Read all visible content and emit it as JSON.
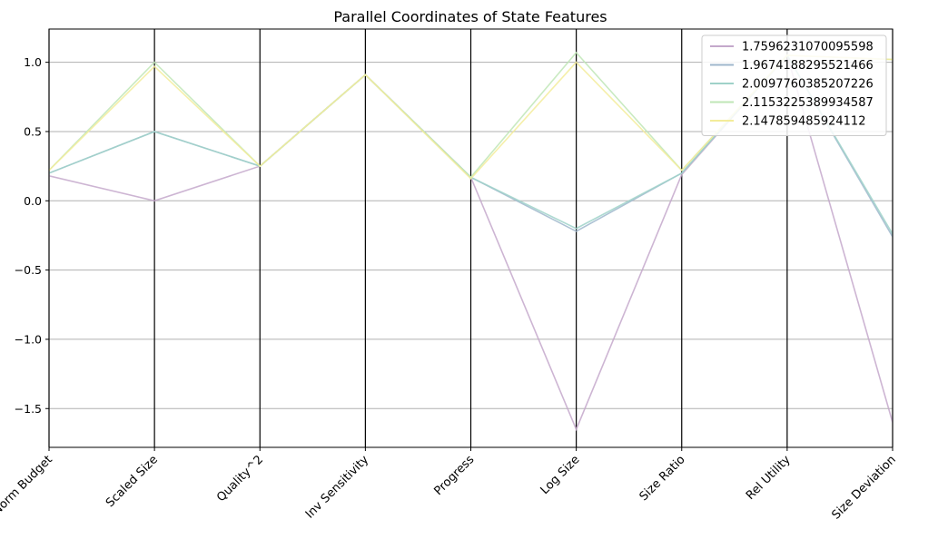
{
  "chart_data": {
    "type": "line",
    "chart_kind": "parallel-coordinates",
    "title": "Parallel Coordinates of State Features",
    "categories": [
      "Norm Budget",
      "Scaled Size",
      "Quality^2",
      "Inv Sensitivity",
      "Progress",
      "Log Size",
      "Size Ratio",
      "Rel Utility",
      "Size Deviation"
    ],
    "ylim": [
      -1.78,
      1.24
    ],
    "yticks": [
      {
        "value": 1.0,
        "label": "1.0"
      },
      {
        "value": 0.5,
        "label": "0.5"
      },
      {
        "value": 0.0,
        "label": "0.0"
      },
      {
        "value": -0.5,
        "label": "−0.5"
      },
      {
        "value": -1.0,
        "label": "−1.0"
      },
      {
        "value": -1.5,
        "label": "−1.5"
      }
    ],
    "grid": true,
    "legend_position": "top-right",
    "series": [
      {
        "name": "1.7596231070095598",
        "color": "#c4a8cb",
        "values": [
          0.18,
          0.0,
          0.25,
          0.91,
          0.17,
          -1.65,
          0.19,
          1.05,
          -1.6
        ]
      },
      {
        "name": "1.9674188295521466",
        "color": "#9fb7cc",
        "values": [
          0.2,
          0.5,
          0.25,
          0.91,
          0.17,
          -0.22,
          0.2,
          1.05,
          -0.26
        ]
      },
      {
        "name": "2.0097760385207226",
        "color": "#9fd2c9",
        "values": [
          0.2,
          0.5,
          0.25,
          0.91,
          0.17,
          -0.2,
          0.2,
          1.05,
          -0.24
        ]
      },
      {
        "name": "2.1153225389934587",
        "color": "#bfe6b6",
        "values": [
          0.22,
          1.0,
          0.25,
          0.91,
          0.17,
          1.07,
          0.22,
          1.05,
          1.02
        ]
      },
      {
        "name": "2.147859485924112",
        "color": "#f3ec9a",
        "values": [
          0.22,
          0.97,
          0.25,
          0.91,
          0.16,
          1.0,
          0.22,
          1.05,
          1.02
        ]
      }
    ]
  }
}
